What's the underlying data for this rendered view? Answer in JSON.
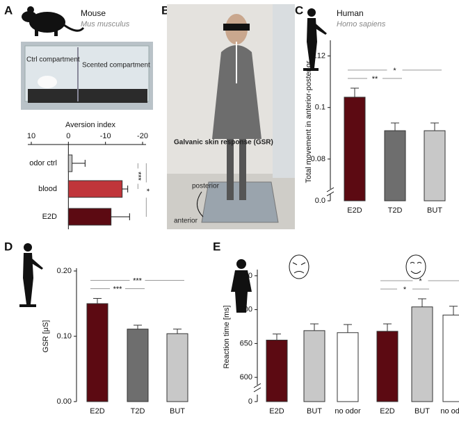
{
  "panels": {
    "letters": [
      "A",
      "B",
      "C",
      "D",
      "E"
    ]
  },
  "A": {
    "species": "Mouse",
    "latin": "Mus musculus",
    "photo_labels": [
      "Ctrl compartment",
      "Scented compartment"
    ]
  },
  "B": {
    "labels": [
      "Galvanic skin response (GSR)",
      "posterior",
      "anterior"
    ]
  },
  "C": {
    "species": "Human",
    "latin": "Homo sapiens"
  },
  "chart_data": [
    {
      "type": "hbar",
      "title": "Aversion index",
      "categories": [
        "odor ctrl",
        "blood",
        "E2D"
      ],
      "values": [
        -1,
        -14.5,
        -11.5
      ],
      "errors": [
        3.5,
        1.5,
        5
      ],
      "colors": [
        "#c8c8c8",
        "#c0353a",
        "#5c0a12"
      ],
      "xlim": [
        10,
        -20
      ],
      "xticks": [
        10,
        0,
        -10,
        -20
      ],
      "significance": [
        {
          "label": "***",
          "bars": [
            0,
            1
          ]
        },
        {
          "label": "*",
          "bars": [
            0,
            2
          ]
        }
      ]
    },
    {
      "type": "bar",
      "ylabel": "Total movement in anterior-posterior",
      "categories": [
        "E2D",
        "T2D",
        "BUT"
      ],
      "values": [
        0.104,
        0.091,
        0.091
      ],
      "errors": [
        0.0035,
        0.003,
        0.003
      ],
      "colors": [
        "#5c0a12",
        "#6e6e6e",
        "#c8c8c8"
      ],
      "ylim": [
        0.07,
        0.125
      ],
      "yticks": [
        {
          "value": 0,
          "label": "0.0"
        },
        {
          "value": 0.08,
          "label": "0.08"
        },
        0.1,
        0.12
      ],
      "axis_break": true,
      "significance": [
        {
          "label": "**",
          "bars": [
            0,
            1
          ]
        },
        {
          "label": "*",
          "bars": [
            0,
            2
          ]
        }
      ]
    },
    {
      "type": "bar",
      "ylabel": "GSR [μS]",
      "categories": [
        "E2D",
        "T2D",
        "BUT"
      ],
      "values": [
        0.15,
        0.111,
        0.104
      ],
      "errors": [
        0.008,
        0.006,
        0.007
      ],
      "colors": [
        "#5c0a12",
        "#6e6e6e",
        "#c8c8c8"
      ],
      "ylim": [
        0,
        0.2
      ],
      "yticks": [
        {
          "value": 0,
          "label": "0.00"
        },
        {
          "value": 0.1,
          "label": "0.10"
        },
        {
          "value": 0.2,
          "label": "0.20"
        }
      ],
      "axis_break": false,
      "significance": [
        {
          "label": "***",
          "bars": [
            0,
            1
          ]
        },
        {
          "label": "***",
          "bars": [
            0,
            2
          ]
        }
      ]
    },
    {
      "type": "bar",
      "ylabel": "Reaction time [ms]",
      "categories": [
        "E2D",
        "BUT",
        "no odor",
        "E2D",
        "BUT",
        "no odor"
      ],
      "values": [
        655,
        669,
        666,
        668,
        704,
        692
      ],
      "errors": [
        9,
        10,
        12,
        11,
        12,
        13
      ],
      "colors": [
        "#5c0a12",
        "#c8c8c8",
        "#ffffff",
        "#5c0a12",
        "#c8c8c8",
        "#ffffff"
      ],
      "ylim": [
        595,
        755
      ],
      "yticks": [
        0,
        600,
        650,
        700,
        750
      ],
      "axis_break": true,
      "significance": [
        {
          "label": "*",
          "bars": [
            3,
            4
          ]
        },
        {
          "label": "*",
          "bars": [
            3,
            5
          ]
        }
      ]
    }
  ]
}
